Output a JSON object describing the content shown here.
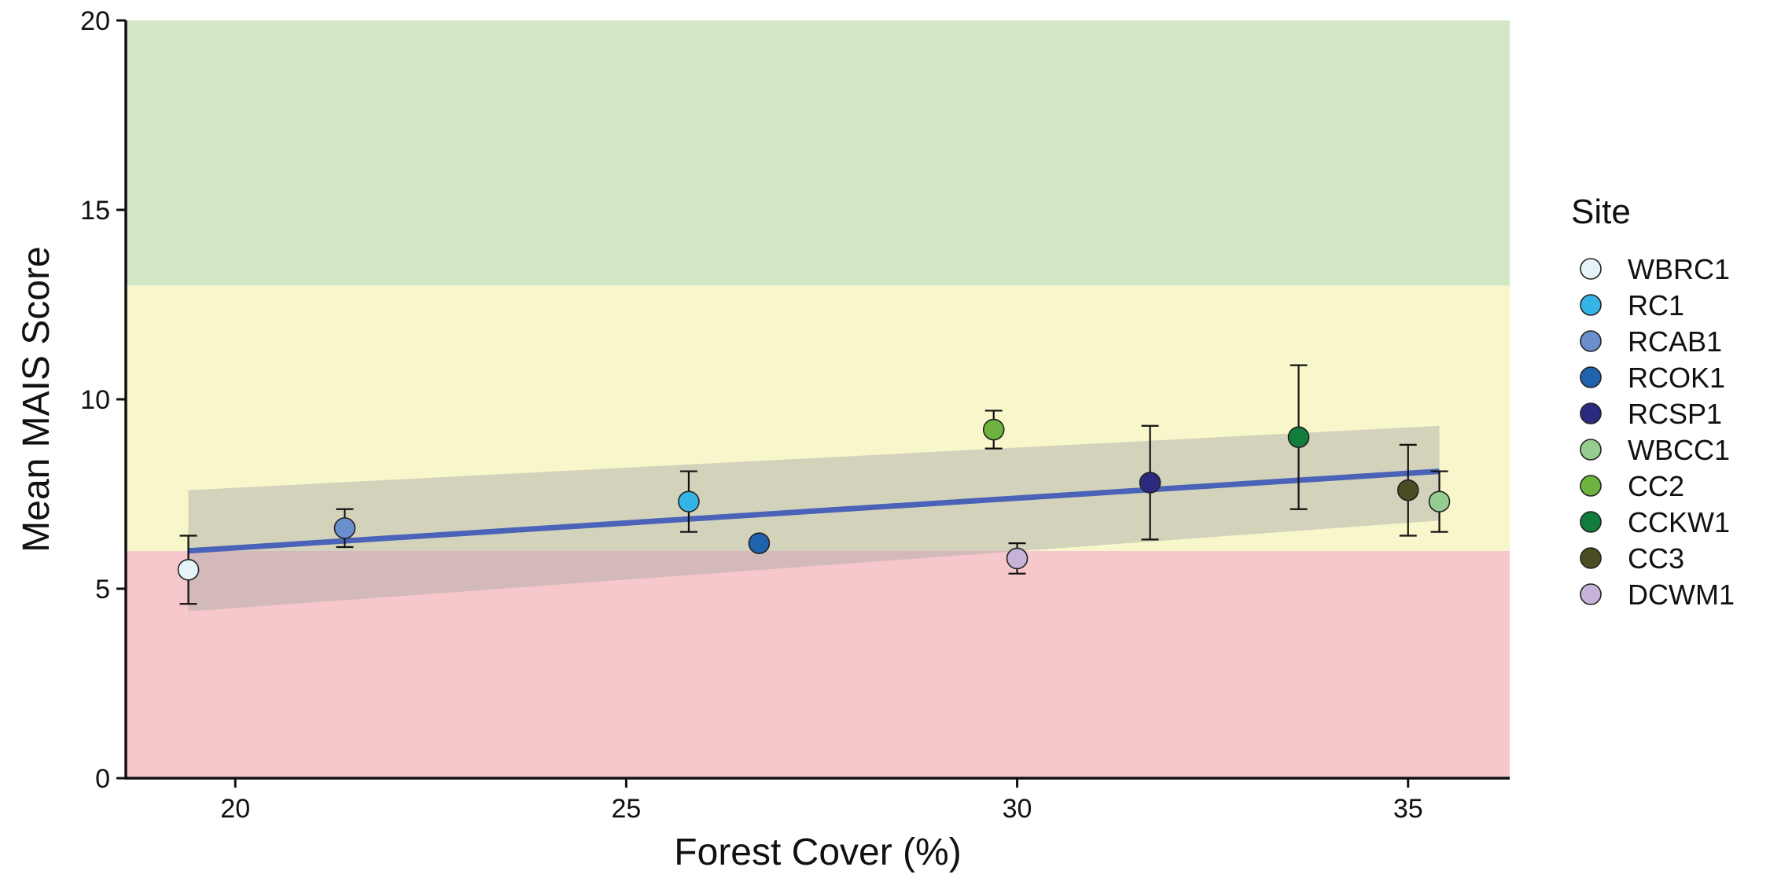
{
  "chart_data": {
    "type": "scatter",
    "title": "",
    "xlabel": "Forest Cover (%)",
    "ylabel": "Mean MAIS Score",
    "xlim": [
      18.6,
      36.3
    ],
    "ylim": [
      0,
      20
    ],
    "xticks": [
      20,
      25,
      30,
      35
    ],
    "yticks": [
      0,
      5,
      10,
      15,
      20
    ],
    "grid": false,
    "background_bands": [
      {
        "from": 0,
        "to": 6,
        "color": "#f7c8cb"
      },
      {
        "from": 6,
        "to": 13,
        "color": "#f8f7cc"
      },
      {
        "from": 13,
        "to": 20,
        "color": "#d3e7c7"
      }
    ],
    "trend_line": {
      "x": [
        19.4,
        35.4
      ],
      "y": [
        6.0,
        8.1
      ],
      "color": "#4a63b8",
      "confidence_band": {
        "x": [
          19.4,
          35.4
        ],
        "upper": [
          7.6,
          9.3
        ],
        "lower": [
          4.4,
          6.8
        ],
        "color": "#a6a6a6"
      }
    },
    "legend": {
      "title": "Site",
      "position": "right"
    },
    "series": [
      {
        "name": "WBRC1",
        "color": "#e6f4fa",
        "x": 19.4,
        "y": 5.5,
        "err_low": 4.6,
        "err_high": 6.4
      },
      {
        "name": "RC1",
        "color": "#35b4e8",
        "x": 25.8,
        "y": 7.3,
        "err_low": 6.5,
        "err_high": 8.1
      },
      {
        "name": "RCAB1",
        "color": "#6a8fcc",
        "x": 21.4,
        "y": 6.6,
        "err_low": 6.1,
        "err_high": 7.1
      },
      {
        "name": "RCOK1",
        "color": "#1f63ad",
        "x": 26.7,
        "y": 6.2,
        "err_low": 6.2,
        "err_high": 6.2
      },
      {
        "name": "RCSP1",
        "color": "#2c2a80",
        "x": 31.7,
        "y": 7.8,
        "err_low": 6.3,
        "err_high": 9.3
      },
      {
        "name": "WBCC1",
        "color": "#96cc90",
        "x": 35.4,
        "y": 7.3,
        "err_low": 6.5,
        "err_high": 8.1
      },
      {
        "name": "CC2",
        "color": "#6eb23f",
        "x": 29.7,
        "y": 9.2,
        "err_low": 8.7,
        "err_high": 9.7
      },
      {
        "name": "CCKW1",
        "color": "#127c3c",
        "x": 33.6,
        "y": 9.0,
        "err_low": 7.1,
        "err_high": 10.9
      },
      {
        "name": "CC3",
        "color": "#4a4c22",
        "x": 35.0,
        "y": 7.6,
        "err_low": 6.4,
        "err_high": 8.8
      },
      {
        "name": "DCWM1",
        "color": "#c6b4d8",
        "x": 30.0,
        "y": 5.8,
        "err_low": 5.4,
        "err_high": 6.2
      }
    ]
  }
}
